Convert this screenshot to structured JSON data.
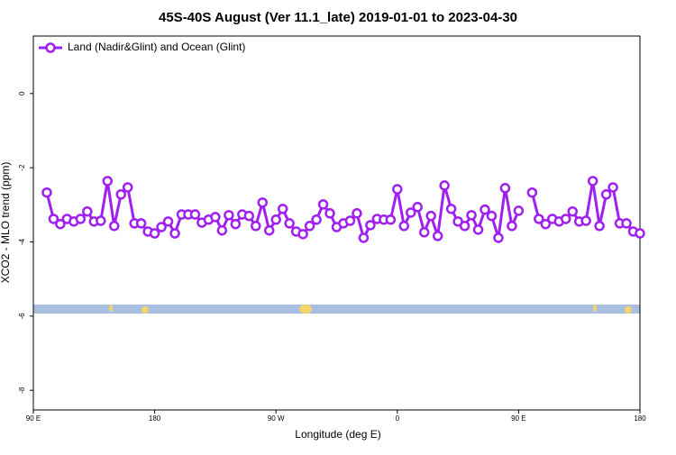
{
  "chart_data": {
    "type": "line",
    "title": "45S-40S August (Ver 11.1_late)   2019-01-01 to 2023-04-30",
    "x_label": "Longitude (deg E)",
    "y_label": "XCO2 - MLO trend (ppm)",
    "legend_position": "top-left",
    "xlim": [
      90,
      540
    ],
    "xticks": [
      {
        "value": 90,
        "label": "90 E"
      },
      {
        "value": 180,
        "label": "180"
      },
      {
        "value": 270,
        "label": "90 W"
      },
      {
        "value": 360,
        "label": "0"
      },
      {
        "value": 450,
        "label": "90 E"
      },
      {
        "value": 540,
        "label": "180"
      }
    ],
    "ylim": [
      -8.53,
      1.55
    ],
    "yticks": [
      0,
      -2,
      -4,
      -6,
      -8
    ],
    "x": [
      100,
      105,
      110,
      115,
      120,
      125,
      130,
      135,
      140,
      145,
      150,
      155,
      160,
      165,
      170,
      175,
      180,
      185,
      190,
      195,
      200,
      205,
      210,
      215,
      220,
      225,
      230,
      235,
      240,
      245,
      250,
      255,
      260,
      265,
      270,
      275,
      280,
      285,
      290,
      295,
      300,
      305,
      310,
      315,
      320,
      325,
      330,
      335,
      340,
      345,
      350,
      355,
      360,
      365,
      370,
      375,
      380,
      385,
      390,
      395,
      400,
      405,
      410,
      415,
      420,
      425,
      430,
      435,
      440,
      445,
      450,
      455,
      460,
      465,
      470,
      475,
      480,
      485,
      490,
      495,
      500,
      505,
      510,
      515,
      520,
      525,
      530,
      535,
      540
    ],
    "series": [
      {
        "name": "Land (Nadir&Glint) and Ocean (Glint)",
        "color": "#a020f0",
        "values": [
          -2.67,
          -3.38,
          -3.52,
          -3.38,
          -3.45,
          -3.38,
          -3.18,
          -3.45,
          -3.43,
          -2.36,
          -3.57,
          -2.72,
          -2.53,
          -3.5,
          -3.5,
          -3.72,
          -3.77,
          -3.6,
          -3.45,
          -3.77,
          -3.26,
          -3.26,
          -3.26,
          -3.48,
          -3.4,
          -3.33,
          -3.69,
          -3.28,
          -3.52,
          -3.26,
          -3.3,
          -3.57,
          -2.94,
          -3.69,
          -3.4,
          -3.11,
          -3.5,
          -3.72,
          -3.79,
          -3.57,
          -3.4,
          -2.99,
          -3.23,
          -3.6,
          -3.5,
          -3.43,
          -3.23,
          -3.89,
          -3.55,
          -3.38,
          -3.4,
          -3.4,
          -2.58,
          -3.57,
          -3.21,
          -3.06,
          -3.74,
          -3.3,
          -3.84,
          -2.48,
          -3.11,
          -3.45,
          -3.57,
          -3.28,
          -3.67,
          -3.13,
          -3.3,
          -3.89,
          -2.55,
          -3.57,
          -3.16,
          null,
          -2.67,
          -3.38,
          -3.52,
          -3.38,
          -3.45,
          -3.38,
          -3.18,
          -3.45,
          -3.43,
          -2.36,
          -3.57,
          -2.72,
          -2.53,
          -3.5,
          -3.5,
          -3.72,
          -3.77
        ]
      }
    ]
  }
}
